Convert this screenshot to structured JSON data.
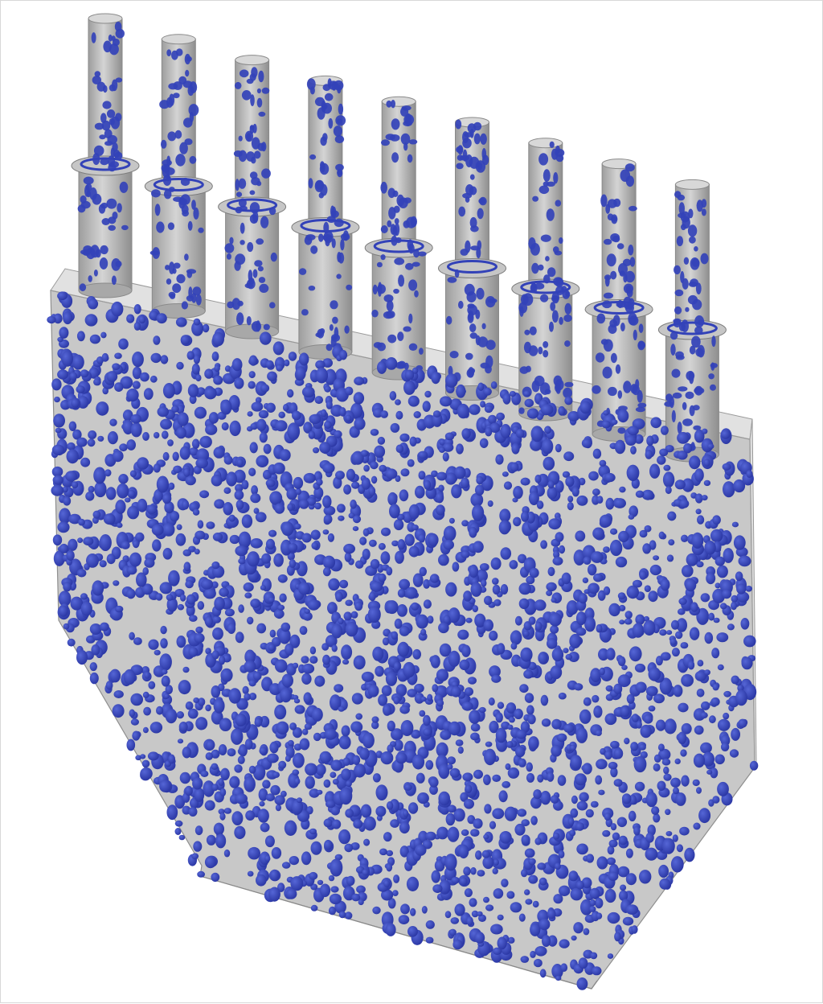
{
  "scene": {
    "subject": "cyclone-separator-particle-render",
    "colors": {
      "background": "#ffffff",
      "vessel": "#b9b9b9",
      "vessel_edge": "#8f8f8f",
      "particle": "#3342b8",
      "particle_highlight": "#5566d6"
    },
    "pipe_count": 9
  }
}
